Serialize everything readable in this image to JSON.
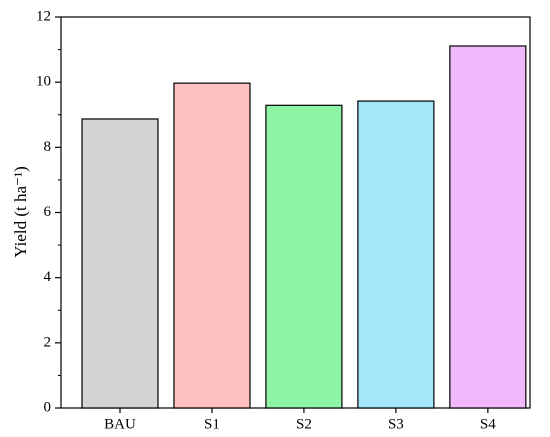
{
  "chart_data": {
    "type": "bar",
    "ylabel": "Yield (t ha⁻¹)",
    "categories": [
      "BAU",
      "S1",
      "S2",
      "S3",
      "S4"
    ],
    "series": [
      {
        "values": [
          8.87,
          9.97,
          9.29,
          9.42,
          11.11
        ],
        "colors": [
          "#d3d3d3",
          "#ffc0c0",
          "#8ef5a7",
          "#a6e6fb",
          "#f0b8fb"
        ]
      }
    ],
    "ylim": [
      0,
      12
    ],
    "yticks": [
      0,
      2,
      4,
      6,
      8,
      10,
      12
    ],
    "yminorticks": [
      1,
      3,
      5,
      7,
      9,
      11
    ]
  }
}
